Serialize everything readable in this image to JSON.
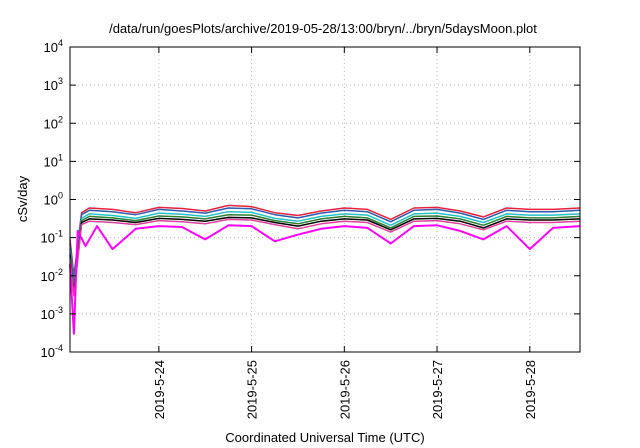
{
  "chart_data": {
    "type": "line",
    "title": "/data/run/goesPlots/archive/2019-05-28/13:00/bryn/../bryn/5daysMoon.plot",
    "xlabel": "Coordinated Universal Time (UTC)",
    "ylabel": "cSv/day",
    "yscale": "log",
    "ylim": [
      0.0001,
      10000
    ],
    "xlim": [
      "2019-05-23T01:00",
      "2019-05-28T13:00"
    ],
    "grid": true,
    "legend": "none",
    "y_ticks": [
      {
        "base": "10",
        "exp": "-4",
        "value": 0.0001
      },
      {
        "base": "10",
        "exp": "-3",
        "value": 0.001
      },
      {
        "base": "10",
        "exp": "-2",
        "value": 0.01
      },
      {
        "base": "10",
        "exp": "-1",
        "value": 0.1
      },
      {
        "base": "10",
        "exp": "0",
        "value": 1
      },
      {
        "base": "10",
        "exp": "1",
        "value": 10
      },
      {
        "base": "10",
        "exp": "2",
        "value": 100
      },
      {
        "base": "10",
        "exp": "3",
        "value": 1000
      },
      {
        "base": "10",
        "exp": "4",
        "value": 10000
      }
    ],
    "x_ticks": [
      {
        "label": "2019-5-24",
        "value": "2019-05-24T00:00"
      },
      {
        "label": "2019-5-25",
        "value": "2019-05-25T00:00"
      },
      {
        "label": "2019-5-26",
        "value": "2019-05-26T00:00"
      },
      {
        "label": "2019-5-27",
        "value": "2019-05-27T00:00"
      },
      {
        "label": "2019-5-28",
        "value": "2019-05-28T00:00"
      }
    ],
    "series": [
      {
        "color": "#e8213a",
        "x": [
          "2019-05-23T01:00",
          "2019-05-23T02:00",
          "2019-05-23T04:00",
          "2019-05-23T06:00",
          "2019-05-23T12:00",
          "2019-05-23T18:00",
          "2019-05-24T00:00",
          "2019-05-24T06:00",
          "2019-05-24T12:00",
          "2019-05-24T18:00",
          "2019-05-25T00:00",
          "2019-05-25T06:00",
          "2019-05-25T12:00",
          "2019-05-25T18:00",
          "2019-05-26T00:00",
          "2019-05-26T06:00",
          "2019-05-26T12:00",
          "2019-05-26T18:00",
          "2019-05-27T00:00",
          "2019-05-27T06:00",
          "2019-05-27T12:00",
          "2019-05-27T18:00",
          "2019-05-28T00:00",
          "2019-05-28T06:00",
          "2019-05-28T13:00"
        ],
        "values": [
          0.09,
          0.01,
          0.45,
          0.6,
          0.55,
          0.45,
          0.62,
          0.58,
          0.5,
          0.7,
          0.65,
          0.45,
          0.38,
          0.5,
          0.6,
          0.55,
          0.3,
          0.6,
          0.62,
          0.5,
          0.35,
          0.6,
          0.55,
          0.55,
          0.6
        ]
      },
      {
        "color": "#2a5db0",
        "x": [
          "2019-05-23T01:00",
          "2019-05-23T02:00",
          "2019-05-23T04:00",
          "2019-05-23T06:00",
          "2019-05-23T12:00",
          "2019-05-23T18:00",
          "2019-05-24T00:00",
          "2019-05-24T06:00",
          "2019-05-24T12:00",
          "2019-05-24T18:00",
          "2019-05-25T00:00",
          "2019-05-25T06:00",
          "2019-05-25T12:00",
          "2019-05-25T18:00",
          "2019-05-26T00:00",
          "2019-05-26T06:00",
          "2019-05-26T12:00",
          "2019-05-26T18:00",
          "2019-05-27T00:00",
          "2019-05-27T06:00",
          "2019-05-27T12:00",
          "2019-05-27T18:00",
          "2019-05-28T00:00",
          "2019-05-28T06:00",
          "2019-05-28T13:00"
        ],
        "values": [
          0.07,
          0.008,
          0.4,
          0.52,
          0.48,
          0.4,
          0.55,
          0.5,
          0.44,
          0.6,
          0.57,
          0.4,
          0.33,
          0.44,
          0.52,
          0.48,
          0.26,
          0.52,
          0.55,
          0.44,
          0.3,
          0.52,
          0.48,
          0.48,
          0.52
        ]
      },
      {
        "color": "#22c3c7",
        "x": [
          "2019-05-23T01:00",
          "2019-05-23T02:00",
          "2019-05-23T04:00",
          "2019-05-23T06:00",
          "2019-05-23T12:00",
          "2019-05-23T18:00",
          "2019-05-24T00:00",
          "2019-05-24T06:00",
          "2019-05-24T12:00",
          "2019-05-24T18:00",
          "2019-05-25T00:00",
          "2019-05-25T06:00",
          "2019-05-25T12:00",
          "2019-05-25T18:00",
          "2019-05-26T00:00",
          "2019-05-26T06:00",
          "2019-05-26T12:00",
          "2019-05-26T18:00",
          "2019-05-27T00:00",
          "2019-05-27T06:00",
          "2019-05-27T12:00",
          "2019-05-27T18:00",
          "2019-05-28T00:00",
          "2019-05-28T06:00",
          "2019-05-28T13:00"
        ],
        "values": [
          0.05,
          0.005,
          0.32,
          0.42,
          0.38,
          0.32,
          0.44,
          0.41,
          0.36,
          0.48,
          0.46,
          0.32,
          0.27,
          0.36,
          0.42,
          0.39,
          0.21,
          0.42,
          0.44,
          0.36,
          0.25,
          0.42,
          0.39,
          0.39,
          0.42
        ]
      },
      {
        "color": "#2e7d32",
        "x": [
          "2019-05-23T01:00",
          "2019-05-23T02:00",
          "2019-05-23T04:00",
          "2019-05-23T06:00",
          "2019-05-23T12:00",
          "2019-05-23T18:00",
          "2019-05-24T00:00",
          "2019-05-24T06:00",
          "2019-05-24T12:00",
          "2019-05-24T18:00",
          "2019-05-25T00:00",
          "2019-05-25T06:00",
          "2019-05-25T12:00",
          "2019-05-25T18:00",
          "2019-05-26T00:00",
          "2019-05-26T06:00",
          "2019-05-26T12:00",
          "2019-05-26T18:00",
          "2019-05-27T00:00",
          "2019-05-27T06:00",
          "2019-05-27T12:00",
          "2019-05-27T18:00",
          "2019-05-28T00:00",
          "2019-05-28T06:00",
          "2019-05-28T13:00"
        ],
        "values": [
          0.04,
          0.004,
          0.28,
          0.36,
          0.33,
          0.28,
          0.37,
          0.35,
          0.31,
          0.4,
          0.39,
          0.28,
          0.23,
          0.31,
          0.36,
          0.33,
          0.18,
          0.36,
          0.37,
          0.31,
          0.21,
          0.36,
          0.33,
          0.33,
          0.36
        ]
      },
      {
        "color": "#000000",
        "x": [
          "2019-05-23T01:00",
          "2019-05-23T02:00",
          "2019-05-23T04:00",
          "2019-05-23T06:00",
          "2019-05-23T12:00",
          "2019-05-23T18:00",
          "2019-05-24T00:00",
          "2019-05-24T06:00",
          "2019-05-24T12:00",
          "2019-05-24T18:00",
          "2019-05-25T00:00",
          "2019-05-25T06:00",
          "2019-05-25T12:00",
          "2019-05-25T18:00",
          "2019-05-26T00:00",
          "2019-05-26T06:00",
          "2019-05-26T12:00",
          "2019-05-26T18:00",
          "2019-05-27T00:00",
          "2019-05-27T06:00",
          "2019-05-27T12:00",
          "2019-05-27T18:00",
          "2019-05-28T00:00",
          "2019-05-28T06:00",
          "2019-05-28T13:00"
        ],
        "values": [
          0.035,
          0.0035,
          0.25,
          0.31,
          0.29,
          0.25,
          0.32,
          0.3,
          0.27,
          0.34,
          0.33,
          0.25,
          0.2,
          0.27,
          0.31,
          0.29,
          0.16,
          0.31,
          0.32,
          0.27,
          0.18,
          0.31,
          0.29,
          0.29,
          0.31
        ]
      },
      {
        "color": "#e0409a",
        "x": [
          "2019-05-23T01:00",
          "2019-05-23T02:00",
          "2019-05-23T04:00",
          "2019-05-23T06:00",
          "2019-05-23T12:00",
          "2019-05-23T18:00",
          "2019-05-24T00:00",
          "2019-05-24T06:00",
          "2019-05-24T12:00",
          "2019-05-24T18:00",
          "2019-05-25T00:00",
          "2019-05-25T06:00",
          "2019-05-25T12:00",
          "2019-05-25T18:00",
          "2019-05-26T00:00",
          "2019-05-26T06:00",
          "2019-05-26T12:00",
          "2019-05-26T18:00",
          "2019-05-27T00:00",
          "2019-05-27T06:00",
          "2019-05-27T12:00",
          "2019-05-27T18:00",
          "2019-05-28T00:00",
          "2019-05-28T06:00",
          "2019-05-28T13:00"
        ],
        "values": [
          0.03,
          0.003,
          0.22,
          0.27,
          0.25,
          0.22,
          0.28,
          0.26,
          0.23,
          0.3,
          0.29,
          0.22,
          0.17,
          0.23,
          0.27,
          0.25,
          0.14,
          0.27,
          0.28,
          0.23,
          0.16,
          0.27,
          0.25,
          0.25,
          0.27
        ]
      },
      {
        "color": "#ff00ff",
        "x": [
          "2019-05-23T01:00",
          "2019-05-23T02:00",
          "2019-05-23T03:00",
          "2019-05-23T05:00",
          "2019-05-23T08:00",
          "2019-05-23T12:00",
          "2019-05-23T18:00",
          "2019-05-24T00:00",
          "2019-05-24T06:00",
          "2019-05-24T12:00",
          "2019-05-24T18:00",
          "2019-05-25T00:00",
          "2019-05-25T06:00",
          "2019-05-25T12:00",
          "2019-05-25T18:00",
          "2019-05-26T00:00",
          "2019-05-26T06:00",
          "2019-05-26T12:00",
          "2019-05-26T18:00",
          "2019-05-27T00:00",
          "2019-05-27T06:00",
          "2019-05-27T12:00",
          "2019-05-27T18:00",
          "2019-05-28T00:00",
          "2019-05-28T06:00",
          "2019-05-28T13:00"
        ],
        "values": [
          0.02,
          0.0003,
          0.15,
          0.06,
          0.2,
          0.05,
          0.17,
          0.2,
          0.19,
          0.09,
          0.21,
          0.2,
          0.08,
          0.12,
          0.17,
          0.2,
          0.18,
          0.07,
          0.2,
          0.21,
          0.15,
          0.09,
          0.2,
          0.05,
          0.18,
          0.2
        ]
      }
    ]
  }
}
